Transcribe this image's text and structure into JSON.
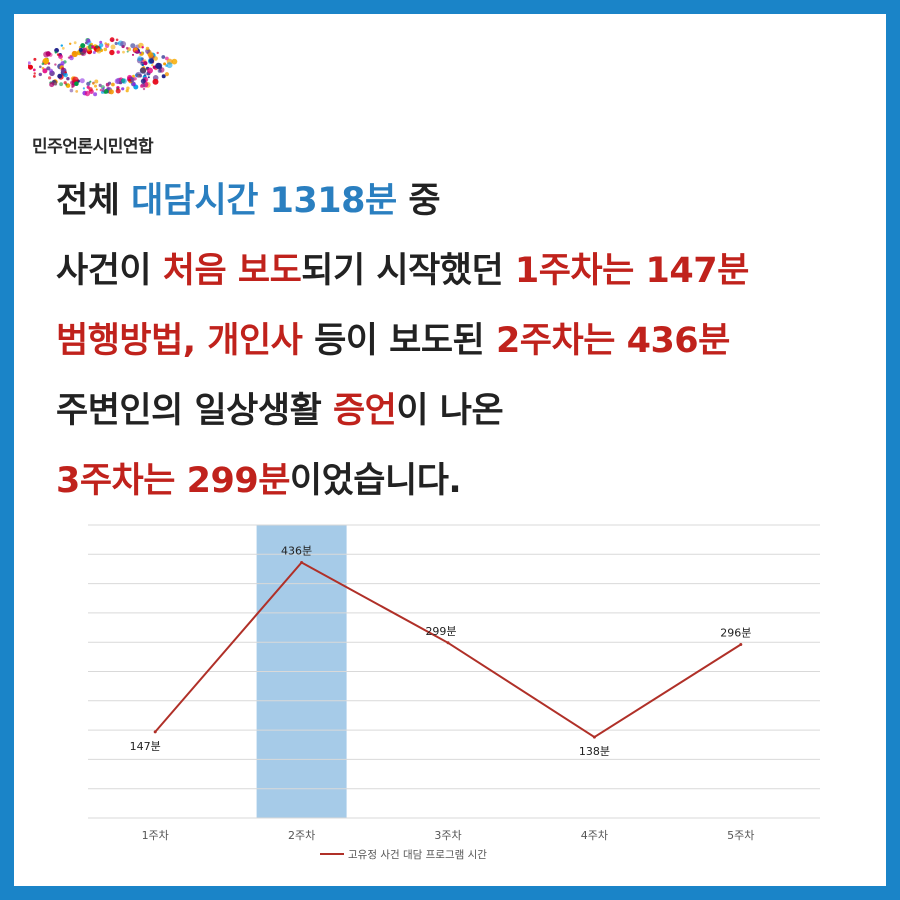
{
  "org": {
    "name": "민주언론시민연합"
  },
  "headline": {
    "lines": [
      [
        {
          "text": "전체 ",
          "tone": "plain"
        },
        {
          "text": "대담시간 1318분",
          "tone": "blue"
        },
        {
          "text": " 중",
          "tone": "plain"
        }
      ],
      [
        {
          "text": "사건이 ",
          "tone": "plain"
        },
        {
          "text": "처음 보도",
          "tone": "red"
        },
        {
          "text": "되기 시작했던 ",
          "tone": "plain"
        },
        {
          "text": "1주차는 147분",
          "tone": "red"
        }
      ],
      [
        {
          "text": "범행방법, 개인사",
          "tone": "red"
        },
        {
          "text": " 등이 보도된 ",
          "tone": "plain"
        },
        {
          "text": "2주차는 436분",
          "tone": "red"
        }
      ],
      [
        {
          "text": "주변인의 일상생활 ",
          "tone": "plain"
        },
        {
          "text": "증언",
          "tone": "red"
        },
        {
          "text": "이 나온",
          "tone": "plain"
        }
      ],
      [
        {
          "text": "3주차는 299분",
          "tone": "red"
        },
        {
          "text": "이었습니다.",
          "tone": "plain"
        }
      ]
    ]
  },
  "colors": {
    "frame": "#1a84c8",
    "blue_text": "#2a7fc0",
    "red_text": "#c0221c",
    "line": "#b03028",
    "highlight_bar": "#a6cbe8",
    "grid": "#d9d9d9"
  },
  "chart_data": {
    "type": "line",
    "categories": [
      "1주차",
      "2주차",
      "3주차",
      "4주차",
      "5주차"
    ],
    "series": [
      {
        "name": "고유정 사건 대담 프로그램 시간",
        "values": [
          147,
          436,
          299,
          138,
          296
        ],
        "data_labels": [
          "147분",
          "436분",
          "299분",
          "138분",
          "296분"
        ],
        "color": "#b03028"
      }
    ],
    "highlight_category": "2주차",
    "ylim": [
      0,
      500
    ],
    "grid": true,
    "y_ticks_shown": false,
    "legend": "bottom"
  }
}
